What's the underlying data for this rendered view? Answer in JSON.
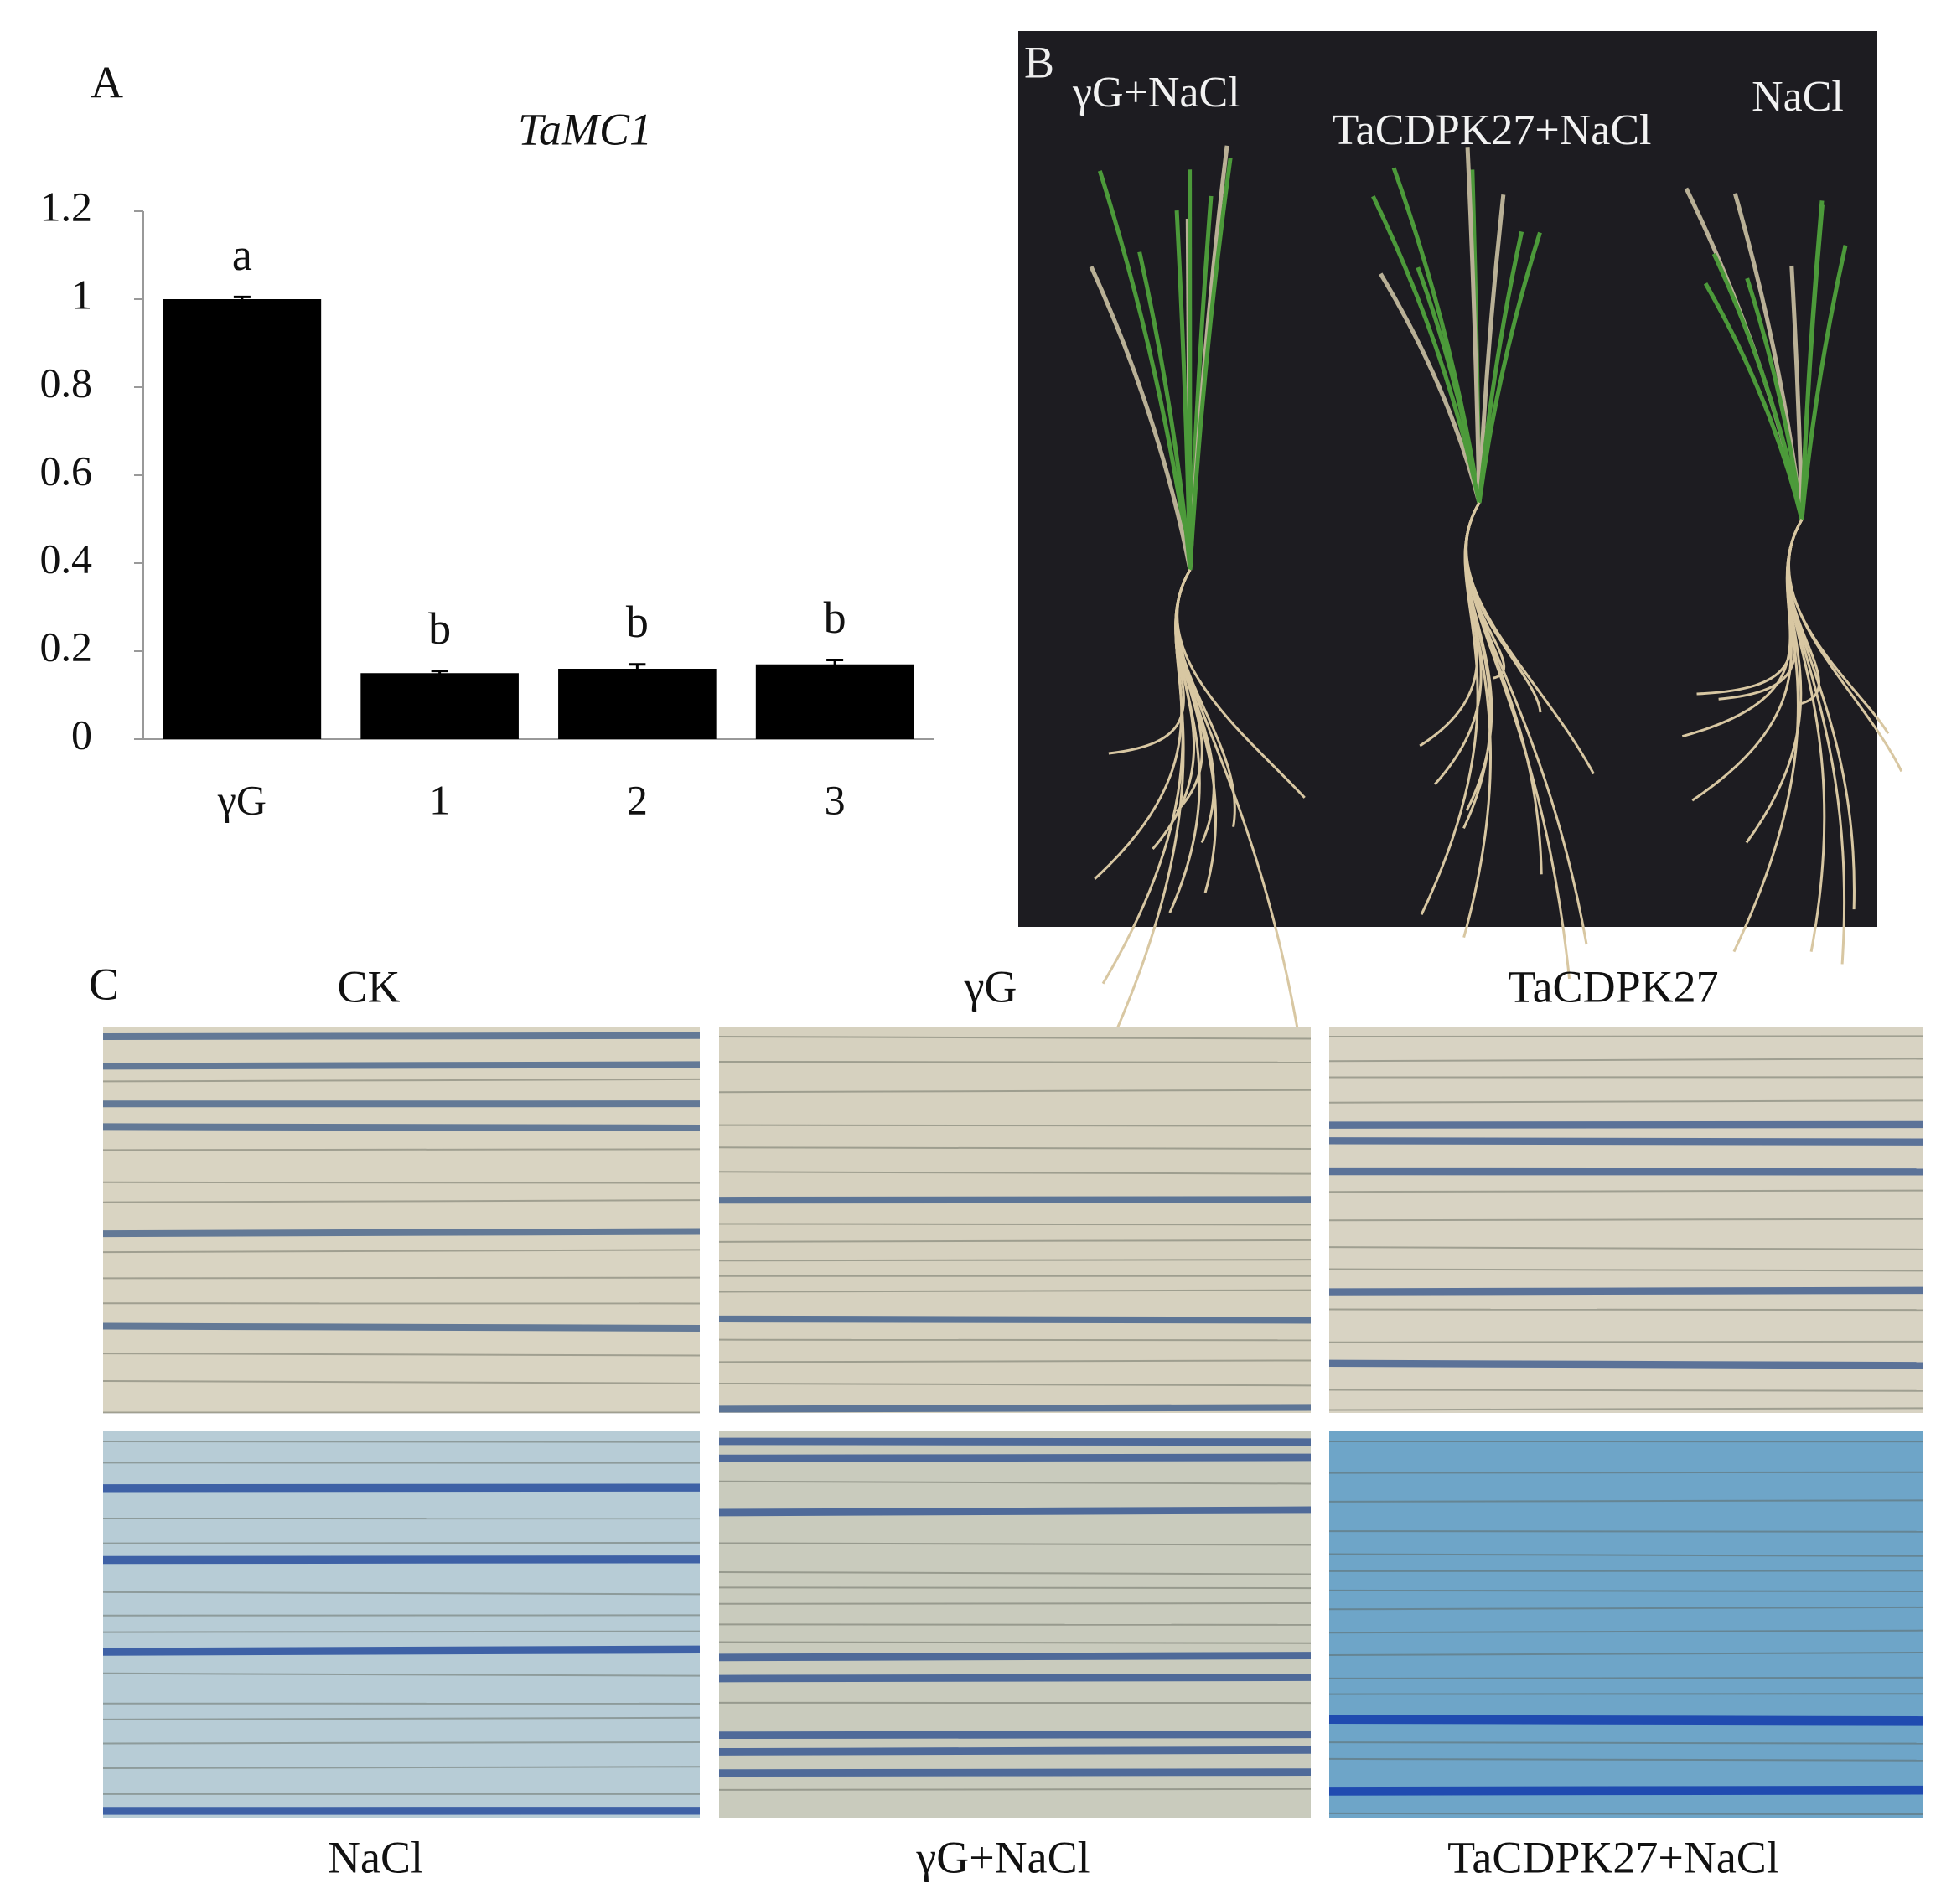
{
  "chart_data": {
    "type": "bar",
    "panel_label": "A",
    "title": "TaMC1",
    "categories": [
      "γG",
      "1",
      "2",
      "3"
    ],
    "values": [
      1,
      0.15,
      0.16,
      0.17
    ],
    "errors": [
      0.005,
      0.005,
      0.01,
      0.01
    ],
    "annotations": [
      "a",
      "b",
      "b",
      "b"
    ],
    "color": "#000000",
    "ylim": [
      0,
      1.2
    ],
    "yticks": [
      0,
      0.2,
      0.4,
      0.6,
      0.8,
      1,
      1.2
    ]
  },
  "panel_b": {
    "label": "B",
    "captions": [
      "γG+NaCl",
      "TaCDPK27+NaCl",
      "NaCl"
    ]
  },
  "panel_c": {
    "label": "C",
    "column_titles": [
      "CK",
      "γG",
      "TaCDPK27"
    ],
    "row_captions": [
      "NaCl",
      "γG+NaCl",
      "TaCDPK27+NaCl"
    ]
  }
}
